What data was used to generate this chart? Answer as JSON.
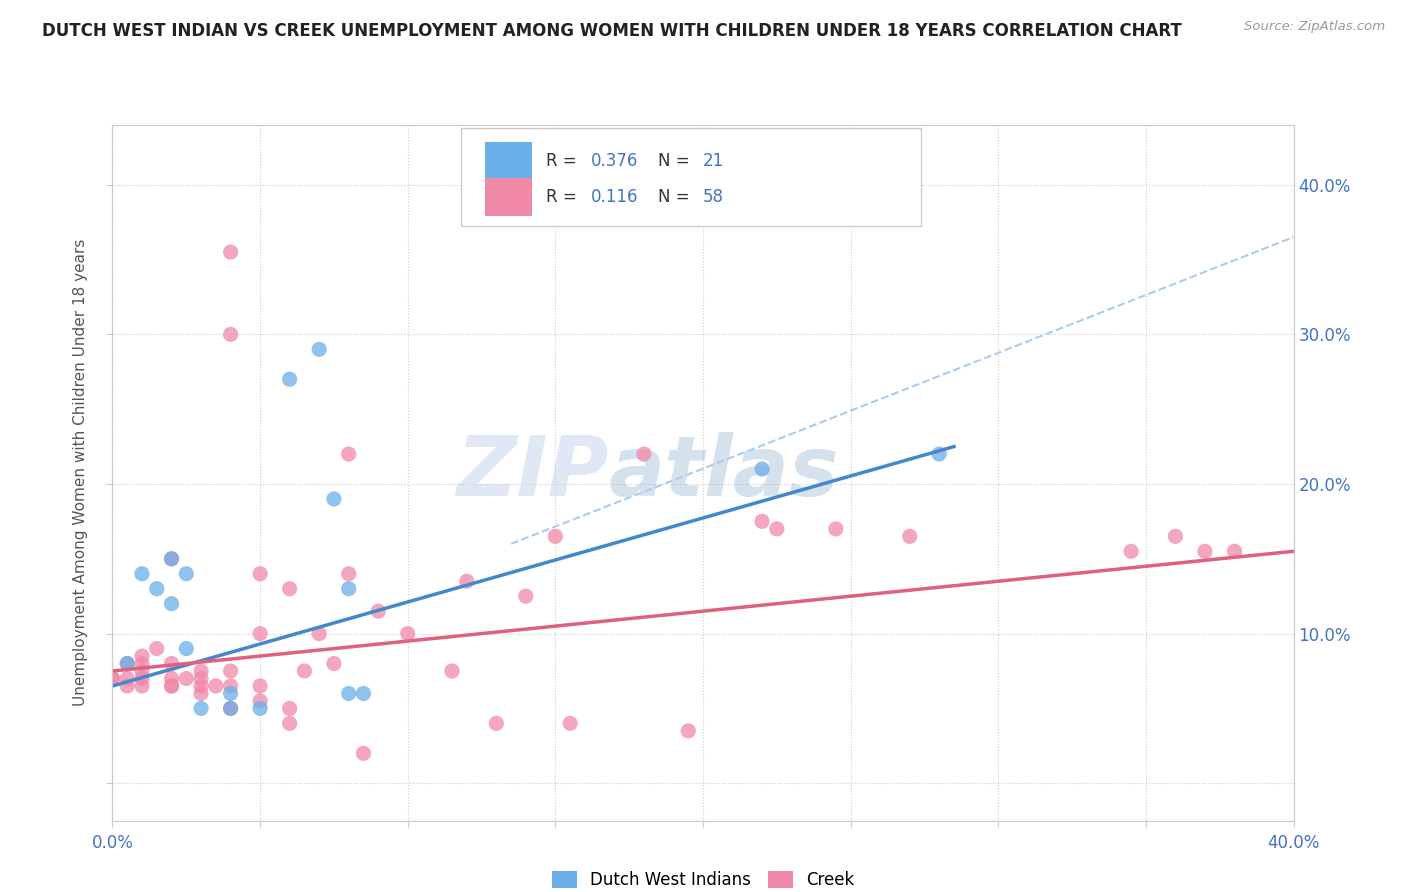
{
  "title": "DUTCH WEST INDIAN VS CREEK UNEMPLOYMENT AMONG WOMEN WITH CHILDREN UNDER 18 YEARS CORRELATION CHART",
  "source": "Source: ZipAtlas.com",
  "ylabel": "Unemployment Among Women with Children Under 18 years",
  "x_range": [
    0.0,
    0.4
  ],
  "y_range": [
    -0.025,
    0.44
  ],
  "background_color": "#ffffff",
  "watermark_zip": "ZIP",
  "watermark_atlas": "atlas",
  "dutch_color": "#6aaee8",
  "creek_color": "#f088a8",
  "dutch_line_color": "#4488cc",
  "creek_line_color": "#e06080",
  "dashed_color": "#aaccee",
  "dutch_scatter": [
    [
      0.005,
      0.08
    ],
    [
      0.01,
      0.14
    ],
    [
      0.015,
      0.13
    ],
    [
      0.02,
      0.12
    ],
    [
      0.02,
      0.15
    ],
    [
      0.025,
      0.14
    ],
    [
      0.025,
      0.09
    ],
    [
      0.03,
      0.05
    ],
    [
      0.04,
      0.05
    ],
    [
      0.04,
      0.06
    ],
    [
      0.05,
      0.05
    ],
    [
      0.06,
      0.27
    ],
    [
      0.07,
      0.29
    ],
    [
      0.075,
      0.19
    ],
    [
      0.08,
      0.13
    ],
    [
      0.08,
      0.06
    ],
    [
      0.085,
      0.06
    ],
    [
      0.22,
      0.21
    ],
    [
      0.28,
      0.22
    ]
  ],
  "creek_scatter": [
    [
      0.0,
      0.07
    ],
    [
      0.0,
      0.07
    ],
    [
      0.005,
      0.08
    ],
    [
      0.005,
      0.065
    ],
    [
      0.005,
      0.07
    ],
    [
      0.01,
      0.075
    ],
    [
      0.01,
      0.085
    ],
    [
      0.01,
      0.07
    ],
    [
      0.01,
      0.08
    ],
    [
      0.01,
      0.065
    ],
    [
      0.015,
      0.09
    ],
    [
      0.02,
      0.08
    ],
    [
      0.02,
      0.065
    ],
    [
      0.02,
      0.07
    ],
    [
      0.02,
      0.15
    ],
    [
      0.02,
      0.065
    ],
    [
      0.025,
      0.07
    ],
    [
      0.03,
      0.065
    ],
    [
      0.03,
      0.07
    ],
    [
      0.03,
      0.075
    ],
    [
      0.03,
      0.06
    ],
    [
      0.035,
      0.065
    ],
    [
      0.04,
      0.075
    ],
    [
      0.04,
      0.065
    ],
    [
      0.04,
      0.05
    ],
    [
      0.04,
      0.3
    ],
    [
      0.04,
      0.355
    ],
    [
      0.05,
      0.1
    ],
    [
      0.05,
      0.14
    ],
    [
      0.05,
      0.065
    ],
    [
      0.05,
      0.055
    ],
    [
      0.06,
      0.13
    ],
    [
      0.06,
      0.05
    ],
    [
      0.06,
      0.04
    ],
    [
      0.065,
      0.075
    ],
    [
      0.07,
      0.1
    ],
    [
      0.075,
      0.08
    ],
    [
      0.08,
      0.14
    ],
    [
      0.08,
      0.22
    ],
    [
      0.085,
      0.02
    ],
    [
      0.09,
      0.115
    ],
    [
      0.1,
      0.1
    ],
    [
      0.115,
      0.075
    ],
    [
      0.12,
      0.135
    ],
    [
      0.13,
      0.04
    ],
    [
      0.14,
      0.125
    ],
    [
      0.15,
      0.165
    ],
    [
      0.155,
      0.04
    ],
    [
      0.18,
      0.22
    ],
    [
      0.195,
      0.035
    ],
    [
      0.22,
      0.175
    ],
    [
      0.225,
      0.17
    ],
    [
      0.245,
      0.17
    ],
    [
      0.27,
      0.165
    ],
    [
      0.345,
      0.155
    ],
    [
      0.36,
      0.165
    ],
    [
      0.37,
      0.155
    ],
    [
      0.38,
      0.155
    ]
  ],
  "dutch_trendline": [
    [
      0.0,
      0.065
    ],
    [
      0.285,
      0.225
    ]
  ],
  "creek_trendline": [
    [
      0.0,
      0.075
    ],
    [
      0.4,
      0.155
    ]
  ],
  "dashed_line": [
    [
      0.135,
      0.16
    ],
    [
      0.4,
      0.365
    ]
  ]
}
